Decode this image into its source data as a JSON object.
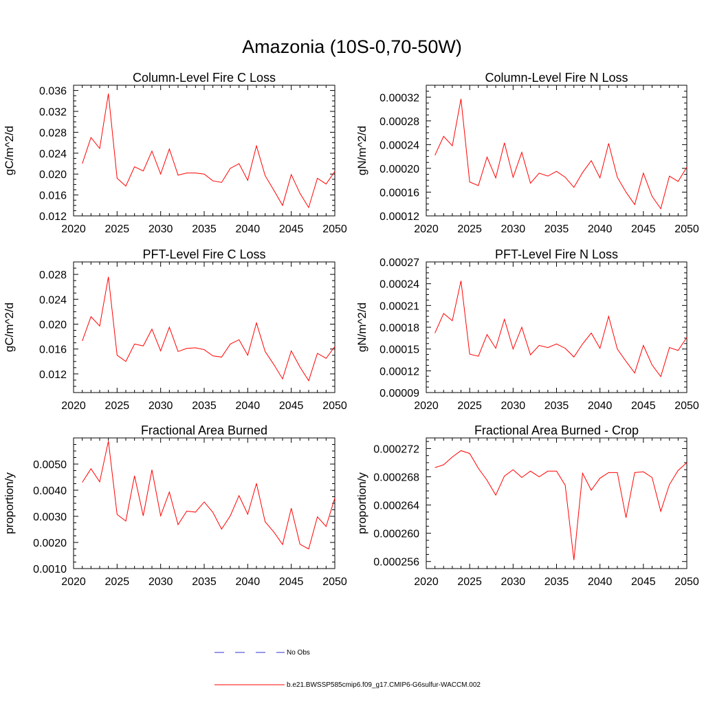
{
  "page_title": "Amazonia (10S-0,70-50W)",
  "legend": {
    "items": [
      {
        "label": "No Obs",
        "color": "#3333cc",
        "dashed": true
      },
      {
        "label": "b.e21.BWSSP585cmip6.f09_g17.CMIP6-G6sulfur-WACCM.002",
        "color": "#ff0000",
        "dashed": false
      }
    ]
  },
  "chart_data": [
    {
      "type": "line",
      "title": "Column-Level Fire C Loss",
      "ylabel": "gC/m^2/d",
      "xlim": [
        2020,
        2050
      ],
      "ylim": [
        0.012,
        0.037
      ],
      "x_ticks": [
        2020,
        2025,
        2030,
        2035,
        2040,
        2045,
        2050
      ],
      "y_ticks": [
        "0.012",
        "0.016",
        "0.020",
        "0.024",
        "0.028",
        "0.032",
        "0.036"
      ],
      "x": [
        2021,
        2022,
        2023,
        2024,
        2025,
        2026,
        2027,
        2028,
        2029,
        2030,
        2031,
        2032,
        2033,
        2034,
        2035,
        2036,
        2037,
        2038,
        2039,
        2040,
        2041,
        2042,
        2043,
        2044,
        2045,
        2046,
        2047,
        2048,
        2049,
        2050
      ],
      "series": [
        {
          "values": [
            0.022,
            0.027,
            0.0249,
            0.0354,
            0.0192,
            0.0177,
            0.0214,
            0.0206,
            0.0244,
            0.02,
            0.0248,
            0.0198,
            0.0202,
            0.0202,
            0.02,
            0.0187,
            0.0184,
            0.0211,
            0.022,
            0.0188,
            0.0254,
            0.0197,
            0.0169,
            0.014,
            0.0199,
            0.0163,
            0.0136,
            0.0192,
            0.0181,
            0.0205
          ]
        }
      ]
    },
    {
      "type": "line",
      "title": "Column-Level Fire N Loss",
      "ylabel": "gN/m^2/d",
      "xlim": [
        2020,
        2050
      ],
      "ylim": [
        0.00012,
        0.00034
      ],
      "x_ticks": [
        2020,
        2025,
        2030,
        2035,
        2040,
        2045,
        2050
      ],
      "y_ticks": [
        "0.00012",
        "0.00016",
        "0.00020",
        "0.00024",
        "0.00028",
        "0.00032"
      ],
      "x": [
        2021,
        2022,
        2023,
        2024,
        2025,
        2026,
        2027,
        2028,
        2029,
        2030,
        2031,
        2032,
        2033,
        2034,
        2035,
        2036,
        2037,
        2038,
        2039,
        2040,
        2041,
        2042,
        2043,
        2044,
        2045,
        2046,
        2047,
        2048,
        2049,
        2050
      ],
      "series": [
        {
          "values": [
            0.000222,
            0.000254,
            0.000238,
            0.000317,
            0.000177,
            0.000171,
            0.000219,
            0.000184,
            0.000243,
            0.000185,
            0.000227,
            0.000175,
            0.000192,
            0.000187,
            0.000195,
            0.000185,
            0.000168,
            0.000193,
            0.000213,
            0.000184,
            0.000242,
            0.000185,
            0.00016,
            0.000139,
            0.000192,
            0.000153,
            0.000132,
            0.000187,
            0.000178,
            0.000202
          ]
        }
      ]
    },
    {
      "type": "line",
      "title": "PFT-Level Fire C Loss",
      "ylabel": "gC/m^2/d",
      "xlim": [
        2020,
        2050
      ],
      "ylim": [
        0.009,
        0.03
      ],
      "x_ticks": [
        2020,
        2025,
        2030,
        2035,
        2040,
        2045,
        2050
      ],
      "y_ticks": [
        "0.012",
        "0.016",
        "0.020",
        "0.024",
        "0.028"
      ],
      "x": [
        2021,
        2022,
        2023,
        2024,
        2025,
        2026,
        2027,
        2028,
        2029,
        2030,
        2031,
        2032,
        2033,
        2034,
        2035,
        2036,
        2037,
        2038,
        2039,
        2040,
        2041,
        2042,
        2043,
        2044,
        2045,
        2046,
        2047,
        2048,
        2049,
        2050
      ],
      "series": [
        {
          "values": [
            0.0173,
            0.0212,
            0.0197,
            0.0276,
            0.015,
            0.014,
            0.0168,
            0.0165,
            0.0192,
            0.0157,
            0.0195,
            0.0156,
            0.0161,
            0.0162,
            0.0159,
            0.0149,
            0.0147,
            0.0168,
            0.0175,
            0.015,
            0.0202,
            0.0156,
            0.0135,
            0.0112,
            0.0157,
            0.0131,
            0.0109,
            0.0153,
            0.0145,
            0.0164
          ]
        }
      ]
    },
    {
      "type": "line",
      "title": "PFT-Level Fire N Loss",
      "ylabel": "gN/m^2/d",
      "xlim": [
        2020,
        2050
      ],
      "ylim": [
        9e-05,
        0.00027
      ],
      "x_ticks": [
        2020,
        2025,
        2030,
        2035,
        2040,
        2045,
        2050
      ],
      "y_ticks": [
        "0.00009",
        "0.00012",
        "0.00015",
        "0.00018",
        "0.00021",
        "0.00024",
        "0.00027"
      ],
      "x": [
        2021,
        2022,
        2023,
        2024,
        2025,
        2026,
        2027,
        2028,
        2029,
        2030,
        2031,
        2032,
        2033,
        2034,
        2035,
        2036,
        2037,
        2038,
        2039,
        2040,
        2041,
        2042,
        2043,
        2044,
        2045,
        2046,
        2047,
        2048,
        2049,
        2050
      ],
      "series": [
        {
          "values": [
            0.000172,
            0.000199,
            0.000189,
            0.000244,
            0.000143,
            0.00014,
            0.00017,
            0.000151,
            0.000191,
            0.00015,
            0.00018,
            0.000142,
            0.000155,
            0.000152,
            0.000157,
            0.000151,
            0.000139,
            0.000157,
            0.000172,
            0.000151,
            0.000195,
            0.00015,
            0.000133,
            0.000117,
            0.000155,
            0.000128,
            0.000112,
            0.000152,
            0.000148,
            0.000166
          ]
        }
      ]
    },
    {
      "type": "line",
      "title": "Fractional Area Burned",
      "ylabel": "proportion/y",
      "xlim": [
        2020,
        2050
      ],
      "ylim": [
        0.001,
        0.006
      ],
      "x_ticks": [
        2020,
        2025,
        2030,
        2035,
        2040,
        2045,
        2050
      ],
      "y_ticks": [
        "0.0010",
        "0.0020",
        "0.0030",
        "0.0040",
        "0.0050"
      ],
      "x": [
        2021,
        2022,
        2023,
        2024,
        2025,
        2026,
        2027,
        2028,
        2029,
        2030,
        2031,
        2032,
        2033,
        2034,
        2035,
        2036,
        2037,
        2038,
        2039,
        2040,
        2041,
        2042,
        2043,
        2044,
        2045,
        2046,
        2047,
        2048,
        2049,
        2050
      ],
      "series": [
        {
          "values": [
            0.0043,
            0.00482,
            0.00432,
            0.00588,
            0.00307,
            0.00282,
            0.00455,
            0.00302,
            0.00478,
            0.00302,
            0.00393,
            0.00268,
            0.0032,
            0.00316,
            0.00355,
            0.00315,
            0.00251,
            0.00302,
            0.00379,
            0.00308,
            0.00426,
            0.00279,
            0.0024,
            0.00192,
            0.00331,
            0.00193,
            0.00175,
            0.00298,
            0.00261,
            0.0037
          ]
        }
      ]
    },
    {
      "type": "line",
      "title": "Fractional Area Burned - Crop",
      "ylabel": "proportion/y",
      "xlim": [
        2020,
        2050
      ],
      "ylim": [
        0.000255,
        0.0002735
      ],
      "x_ticks": [
        2020,
        2025,
        2030,
        2035,
        2040,
        2045,
        2050
      ],
      "y_ticks": [
        "0.000256",
        "0.000260",
        "0.000264",
        "0.000268",
        "0.000272"
      ],
      "x": [
        2021,
        2022,
        2023,
        2024,
        2025,
        2026,
        2027,
        2028,
        2029,
        2030,
        2031,
        2032,
        2033,
        2034,
        2035,
        2036,
        2037,
        2038,
        2039,
        2040,
        2041,
        2042,
        2043,
        2044,
        2045,
        2046,
        2047,
        2048,
        2049,
        2050
      ],
      "series": [
        {
          "values": [
            0.0002693,
            0.0002697,
            0.0002708,
            0.0002717,
            0.0002713,
            0.0002692,
            0.0002675,
            0.0002654,
            0.0002681,
            0.000269,
            0.0002679,
            0.0002688,
            0.000268,
            0.0002688,
            0.0002688,
            0.0002668,
            0.0002562,
            0.0002685,
            0.0002661,
            0.0002678,
            0.0002686,
            0.0002686,
            0.0002622,
            0.0002686,
            0.0002687,
            0.0002679,
            0.0002631,
            0.0002669,
            0.0002689,
            0.00027
          ]
        }
      ]
    }
  ]
}
